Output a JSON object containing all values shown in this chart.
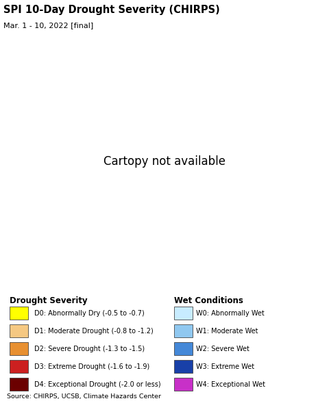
{
  "title": "SPI 10-Day Drought Severity (CHIRPS)",
  "subtitle": "Mar. 1 - 10, 2022 [final]",
  "ocean_color": "#b8e8f0",
  "land_bg_color": "#e8e4e8",
  "india_land_color": "#f0e8e0",
  "border_color": "#111111",
  "state_border_color": "#888888",
  "drought_legend": [
    {
      "code": "D0",
      "label": "D0: Abnormally Dry (-0.5 to -0.7)",
      "color": "#ffff00"
    },
    {
      "code": "D1",
      "label": "D1: Moderate Drought (-0.8 to -1.2)",
      "color": "#f5c882"
    },
    {
      "code": "D2",
      "label": "D2: Severe Drought (-1.3 to -1.5)",
      "color": "#e89030"
    },
    {
      "code": "D3",
      "label": "D3: Extreme Drought (-1.6 to -1.9)",
      "color": "#cc2020"
    },
    {
      "code": "D4",
      "label": "D4: Exceptional Drought (-2.0 or less)",
      "color": "#6b0000"
    }
  ],
  "wet_legend": [
    {
      "code": "W0",
      "label": "W0: Abnormally Wet",
      "color": "#c8ecff"
    },
    {
      "code": "W1",
      "label": "W1: Moderate Wet",
      "color": "#90c8f0"
    },
    {
      "code": "W2",
      "label": "W2: Severe Wet",
      "color": "#4488d8"
    },
    {
      "code": "W3",
      "label": "W3: Extreme Wet",
      "color": "#1840a8"
    },
    {
      "code": "W4",
      "label": "W4: Exceptional Wet",
      "color": "#c830c8"
    }
  ],
  "source_text": "Source: CHIRPS, UCSB, Climate Hazards Center",
  "legend_title_drought": "Drought Severity",
  "legend_title_wet": "Wet Conditions",
  "map_extent": [
    58.0,
    100.0,
    5.0,
    38.0
  ],
  "figsize": [
    4.8,
    5.86
  ],
  "dpi": 100
}
